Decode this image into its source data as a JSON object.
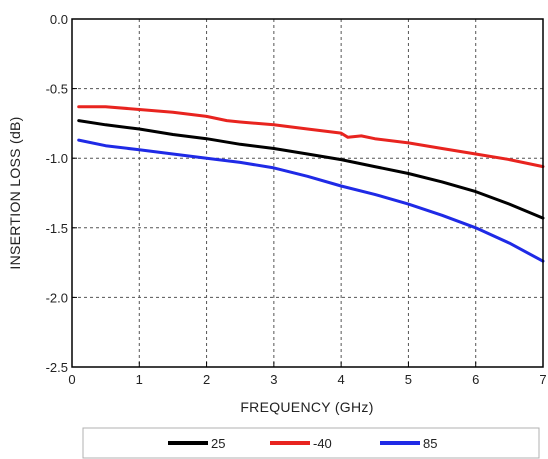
{
  "chart_data": {
    "type": "line",
    "title": "",
    "xlabel": "FREQUENCY (GHz)",
    "ylabel": "INSERTION LOSS (dB)",
    "xlim": [
      0,
      7
    ],
    "ylim": [
      -2.5,
      0.0
    ],
    "x_ticks": [
      "0",
      "1",
      "2",
      "3",
      "4",
      "5",
      "6",
      "7"
    ],
    "y_ticks": [
      "0.0",
      "-0.5",
      "-1.0",
      "-1.5",
      "-2.0",
      "-2.5"
    ],
    "grid": true,
    "legend_position": "bottom",
    "series": [
      {
        "name": "25",
        "color": "#000000",
        "x": [
          0.1,
          0.5,
          1.0,
          1.5,
          2.0,
          2.5,
          3.0,
          3.5,
          4.0,
          4.5,
          5.0,
          5.5,
          6.0,
          6.5,
          7.0
        ],
        "y": [
          -0.73,
          -0.76,
          -0.79,
          -0.83,
          -0.86,
          -0.9,
          -0.93,
          -0.97,
          -1.01,
          -1.06,
          -1.11,
          -1.17,
          -1.24,
          -1.33,
          -1.43
        ]
      },
      {
        "name": "-40",
        "color": "#e8241f",
        "x": [
          0.1,
          0.5,
          1.0,
          1.5,
          2.0,
          2.3,
          2.5,
          3.0,
          3.5,
          4.0,
          4.1,
          4.3,
          4.5,
          5.0,
          5.5,
          6.0,
          6.5,
          7.0
        ],
        "y": [
          -0.63,
          -0.63,
          -0.65,
          -0.67,
          -0.7,
          -0.73,
          -0.74,
          -0.76,
          -0.79,
          -0.82,
          -0.85,
          -0.84,
          -0.86,
          -0.89,
          -0.93,
          -0.97,
          -1.01,
          -1.06
        ]
      },
      {
        "name": "85",
        "color": "#1f2ae6",
        "x": [
          0.1,
          0.5,
          1.0,
          1.5,
          2.0,
          2.5,
          3.0,
          3.5,
          4.0,
          4.5,
          5.0,
          5.5,
          6.0,
          6.5,
          7.0
        ],
        "y": [
          -0.87,
          -0.91,
          -0.94,
          -0.97,
          -1.0,
          -1.03,
          -1.07,
          -1.13,
          -1.2,
          -1.26,
          -1.33,
          -1.41,
          -1.5,
          -1.61,
          -1.74
        ]
      }
    ]
  }
}
